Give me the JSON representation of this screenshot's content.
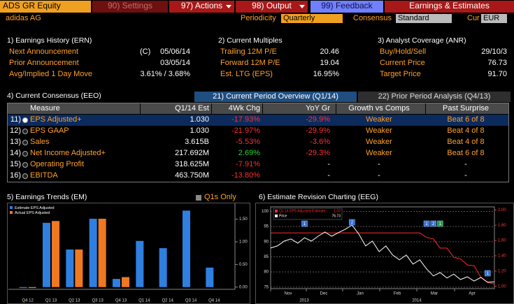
{
  "toolbar": {
    "ticker": "ADS GR Equity",
    "buttons": [
      "90) Settings",
      "97) Actions",
      "98) Output",
      "99) Feedback"
    ],
    "title": "Earnings & Estimates"
  },
  "header": {
    "company": "adidas AG",
    "periodicity_label": "Periodicity",
    "periodicity": "Quarterly",
    "consensus_label": "Consensus",
    "consensus": "Standard",
    "currency_label": "Cur",
    "currency": "EUR"
  },
  "sections": [
    {
      "title": "1) Earnings History (ERN)",
      "rows": [
        {
          "label": "Next Announcement",
          "note": "(C)",
          "value": "05/06/14"
        },
        {
          "label": "Prior Announcement",
          "value": "03/05/14"
        },
        {
          "label": "Avg/Implied 1 Day Move",
          "value": "3.61% / 3.68%"
        }
      ]
    },
    {
      "title": "2) Current Multiples",
      "rows": [
        {
          "label": "Trailing 12M P/E",
          "value": "20.46"
        },
        {
          "label": "Forward 12M P/E",
          "value": "19.04"
        },
        {
          "label": "Est. LTG (EPS)",
          "value": "16.95%"
        }
      ]
    },
    {
      "title": "3) Analyst Coverage (ANR)",
      "rows": [
        {
          "label": "Buy/Hold/Sell",
          "value": "29/10/3"
        },
        {
          "label": "Current Price",
          "value": "76.73"
        },
        {
          "label": "Target Price",
          "value": "91.70"
        }
      ]
    }
  ],
  "consensus": {
    "title": "4) Current Consensus (EEO)",
    "tabs": [
      "21) Current Period Overview (Q1/14)",
      "22) Prior Period Analysis (Q4/13)"
    ],
    "columns": [
      "Measure",
      "Q1/14 Est",
      "4Wk Chg",
      "YoY Gr",
      "Growth vs Comps",
      "Past Surprise"
    ],
    "rows": [
      [
        "11)",
        "EPS Adjusted+",
        "1.030",
        "-17.93%",
        "-29.9%",
        "Weaker",
        "Beat 6 of 8"
      ],
      [
        "12)",
        "EPS GAAP",
        "1.030",
        "-21.97%",
        "-29.9%",
        "Weaker",
        "Beat 4 of 8"
      ],
      [
        "13)",
        "Sales",
        "3.615B",
        "-5.53%",
        "-3.6%",
        "Weaker",
        "Beat 4 of 8"
      ],
      [
        "14)",
        "Net Income Adjusted+",
        "217.692M",
        "2.69%",
        "-29.3%",
        "Weaker",
        "Beat 6 of 8"
      ],
      [
        "15)",
        "Operating Profit",
        "318.625M",
        "-7.91%",
        "-",
        "-",
        "-"
      ],
      [
        "16)",
        "EBITDA",
        "463.750M",
        "-13.80%",
        "-",
        "-",
        "-"
      ]
    ]
  },
  "earnings_trends": {
    "title": "5) Earnings Trends (EM)",
    "option": "Q1s Only",
    "chart": {
      "type": "bar",
      "categories": [
        "Q4 12",
        "Q1 13",
        "Q2 13",
        "Q3 13",
        "Q4 13",
        "Q1 14",
        "Q2 14",
        "Q3 14",
        "Q4 14"
      ],
      "series": [
        {
          "name": "Estimate EPS Adjusted",
          "color": "#2f7fe0",
          "values": [
            -0.02,
            1.42,
            0.83,
            1.51,
            0.18,
            1.02,
            0.86,
            1.69,
            0.43
          ]
        },
        {
          "name": "Actual EPS Adjusted",
          "color": "#f07820",
          "values": [
            -0.02,
            1.46,
            0.83,
            1.51,
            0.22,
            null,
            null,
            null,
            null
          ]
        }
      ],
      "ylim": [
        -0.05,
        1.85
      ],
      "yticks": [
        {
          "value": 0,
          "label": "0.00"
        },
        {
          "value": 0.5,
          "label": "0.50"
        },
        {
          "value": 1,
          "label": "1.00"
        },
        {
          "value": 1.5,
          "label": "1.50"
        }
      ]
    }
  },
  "revision": {
    "title": "6) Estimate Revision Charting (EEG)",
    "chart": {
      "type": "line",
      "months": [
        "Nov",
        "Dec",
        "Jan",
        "Feb",
        "Mar",
        "Apr"
      ],
      "years": [
        "2013",
        "2014"
      ],
      "series": [
        {
          "name": "Q1 14 EPS Adjusted Estimate",
          "last": "1.03",
          "color": "#ff2a2a",
          "axis": "y2",
          "values": [
            1.7,
            1.7,
            1.7,
            1.7,
            1.7,
            1.7,
            1.7,
            1.7,
            1.7,
            1.7,
            1.7,
            1.7,
            1.7,
            1.7,
            1.7,
            1.7,
            1.7,
            1.7,
            1.7,
            1.7,
            1.7,
            1.7,
            1.7,
            1.64,
            1.62,
            1.5,
            1.5,
            1.38,
            1.36,
            1.28,
            1.27,
            1.12,
            1.05,
            1.03
          ]
        },
        {
          "name": "Price",
          "last": "76.73",
          "color": "#ffffff",
          "values": [
            87.9,
            88.6,
            90.2,
            90.9,
            89.5,
            91.3,
            90.2,
            91.8,
            93.2,
            91.8,
            93.0,
            94.1,
            95.5,
            92.5,
            88.6,
            90.2,
            86.7,
            88.6,
            85.6,
            84.0,
            85.6,
            82.6,
            84.0,
            81.0,
            78.7,
            79.8,
            78.0,
            79.3,
            77.5,
            78.4,
            77.0,
            78.2,
            76.6,
            76.73
          ]
        }
      ],
      "ylim": [
        74.5,
        101.5
      ],
      "yticks": [
        75,
        80,
        85,
        90,
        95,
        100
      ],
      "y2lim": [
        0.97,
        2.04
      ],
      "y2ticks": [
        {
          "value": 1,
          "label": "1.00"
        },
        {
          "value": 1.2,
          "label": "1.20"
        },
        {
          "value": 1.4,
          "label": "1.40"
        },
        {
          "value": 1.6,
          "label": "1.60"
        },
        {
          "value": 1.8,
          "label": "1.80"
        },
        {
          "value": 2,
          "label": "2.00"
        }
      ],
      "grid": true,
      "annotations": [
        {
          "label": "1",
          "color": "#2f6fe0"
        },
        {
          "label": "2",
          "color": "#2f6fe0"
        },
        {
          "label": "1",
          "color": "#2f6fe0"
        },
        {
          "label": "2",
          "color": "#2f6fe0"
        },
        {
          "label": "1",
          "color": "#1fa040"
        },
        {
          "label": "1",
          "color": "#2f6fe0"
        }
      ]
    }
  }
}
